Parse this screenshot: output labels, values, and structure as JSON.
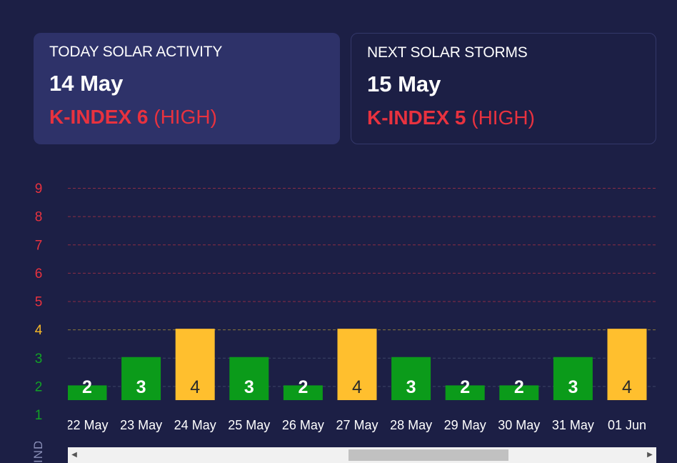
{
  "today": {
    "title": "TODAY SOLAR ACTIVITY",
    "date": "14 May",
    "kindex_label": "K-INDEX 6",
    "level": "(HIGH)"
  },
  "next": {
    "title": "NEXT SOLAR STORMS",
    "date": "15 May",
    "kindex_label": "K-INDEX 5",
    "level": "(HIGH)"
  },
  "colors": {
    "background": "#1c1f45",
    "card_active": "#2e3269",
    "alert_red": "#e8323f",
    "bar_green": "#0b9b1a",
    "bar_yellow": "#ffbf2e",
    "tick_green": "#12a326",
    "tick_yellow": "#f7b928",
    "tick_red": "#e8323f",
    "grid": "#8b2e45"
  },
  "chart_data": {
    "type": "bar",
    "categories": [
      "22 May",
      "23 May",
      "24 May",
      "25 May",
      "26 May",
      "27 May",
      "28 May",
      "29 May",
      "30 May",
      "31 May",
      "01 Jun"
    ],
    "values": [
      2,
      3,
      4,
      3,
      2,
      4,
      3,
      2,
      2,
      3,
      4
    ],
    "ylim": [
      1,
      9
    ],
    "yticks": [
      1,
      2,
      3,
      4,
      5,
      6,
      7,
      8,
      9
    ],
    "ylabel": "INDEX",
    "grid": true,
    "data_labels": true,
    "scrollable": true
  }
}
